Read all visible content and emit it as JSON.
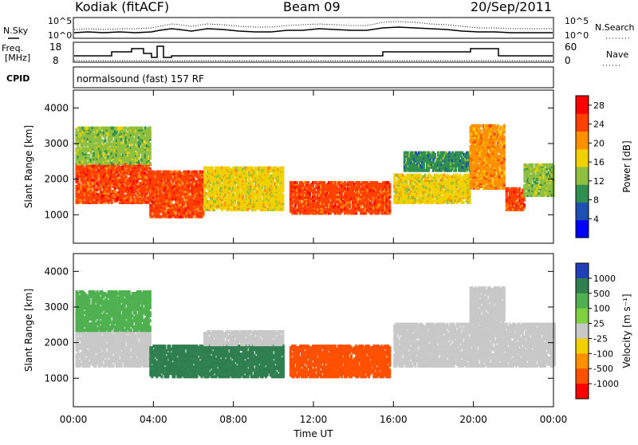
{
  "header": {
    "station": "Kodiak (fitACF)",
    "beam": "Beam 09",
    "date": "20/Sep/2011"
  },
  "top_panels": {
    "nsky_label": "N.Sky",
    "nsearch_label": "N.Search",
    "noise_ticks_left": [
      "10^5",
      "10^0"
    ],
    "noise_ticks_right": [
      "10^5",
      "10^0"
    ],
    "freq_label_line1": "Freq.",
    "freq_label_line2": "[MHz]",
    "freq_ticks": [
      "18",
      "8"
    ],
    "nave_label": "Nave",
    "nave_ticks": [
      "60",
      "0"
    ],
    "cpid_label": "CPID",
    "cpid_text": "normalsound (fast) 157 RF"
  },
  "chart_data": [
    {
      "type": "heatmap",
      "title": "",
      "xlabel": "Time UT",
      "ylabel": "Slant Range [km]",
      "x_ticks": [
        "00:00",
        "04:00",
        "08:00",
        "12:00",
        "16:00",
        "20:00",
        "00:00"
      ],
      "xlim": [
        0,
        24
      ],
      "y_ticks": [
        "1000",
        "2000",
        "3000",
        "4000"
      ],
      "ylim": [
        200,
        4500
      ],
      "colorbar": {
        "label": "Power [dB]",
        "ticks": [
          "4",
          "8",
          "12",
          "16",
          "20",
          "24",
          "28"
        ],
        "range": [
          0,
          30
        ],
        "colors": [
          "#0000ff",
          "#1f4fb0",
          "#2f8f4f",
          "#8fbf3f",
          "#f0d000",
          "#ff9000",
          "#ff4000",
          "#ff0000"
        ]
      },
      "regions": [
        {
          "t0": 0.1,
          "t1": 3.8,
          "r0": 1300,
          "r1": 2400,
          "level": 24
        },
        {
          "t0": 0.1,
          "t1": 3.8,
          "r0": 2400,
          "r1": 3400,
          "level": 12
        },
        {
          "t0": 3.8,
          "t1": 6.5,
          "r0": 900,
          "r1": 2200,
          "level": 24
        },
        {
          "t0": 6.5,
          "t1": 10.5,
          "r0": 1100,
          "r1": 2300,
          "level": 18
        },
        {
          "t0": 10.8,
          "t1": 15.8,
          "r0": 1000,
          "r1": 1900,
          "level": 26
        },
        {
          "t0": 16.0,
          "t1": 19.8,
          "r0": 1300,
          "r1": 2100,
          "level": 16
        },
        {
          "t0": 16.5,
          "t1": 19.8,
          "r0": 2200,
          "r1": 2700,
          "level": 8
        },
        {
          "t0": 19.8,
          "t1": 21.5,
          "r0": 1700,
          "r1": 3500,
          "level": 20
        },
        {
          "t0": 21.6,
          "t1": 22.5,
          "r0": 1100,
          "r1": 1700,
          "level": 26
        },
        {
          "t0": 22.5,
          "t1": 24.0,
          "r0": 1500,
          "r1": 2400,
          "level": 12
        }
      ]
    },
    {
      "type": "heatmap",
      "title": "",
      "xlabel": "Time UT",
      "ylabel": "Slant Range [km]",
      "x_ticks": [
        "00:00",
        "04:00",
        "08:00",
        "12:00",
        "16:00",
        "20:00",
        "00:00"
      ],
      "xlim": [
        0,
        24
      ],
      "y_ticks": [
        "1000",
        "2000",
        "3000",
        "4000"
      ],
      "ylim": [
        200,
        4500
      ],
      "colorbar": {
        "label": "Velocity [m s⁻¹]",
        "ticks": [
          "1000",
          "500",
          "100",
          "25",
          "-25",
          "-100",
          "-500",
          "-1000"
        ],
        "colors": [
          "#1f3fb8",
          "#2f7f4f",
          "#4fb04f",
          "#7fd040",
          "#c8c8c8",
          "#f0d000",
          "#ff9000",
          "#ff5000",
          "#ff0000"
        ]
      },
      "regions": [
        {
          "t0": 0.1,
          "t1": 3.8,
          "r0": 1300,
          "r1": 2300,
          "level": 25
        },
        {
          "t0": 0.1,
          "t1": 3.8,
          "r0": 2300,
          "r1": 3400,
          "level": 100
        },
        {
          "t0": 3.8,
          "t1": 10.5,
          "r0": 1000,
          "r1": 1900,
          "level": 500
        },
        {
          "t0": 6.5,
          "t1": 10.5,
          "r0": 1900,
          "r1": 2300,
          "level": 25
        },
        {
          "t0": 10.8,
          "t1": 15.8,
          "r0": 1000,
          "r1": 1900,
          "level": -500
        },
        {
          "t0": 16.0,
          "t1": 24.0,
          "r0": 1300,
          "r1": 2500,
          "level": 25
        },
        {
          "t0": 19.8,
          "t1": 21.5,
          "r0": 2500,
          "r1": 3500,
          "level": 25
        }
      ]
    }
  ]
}
